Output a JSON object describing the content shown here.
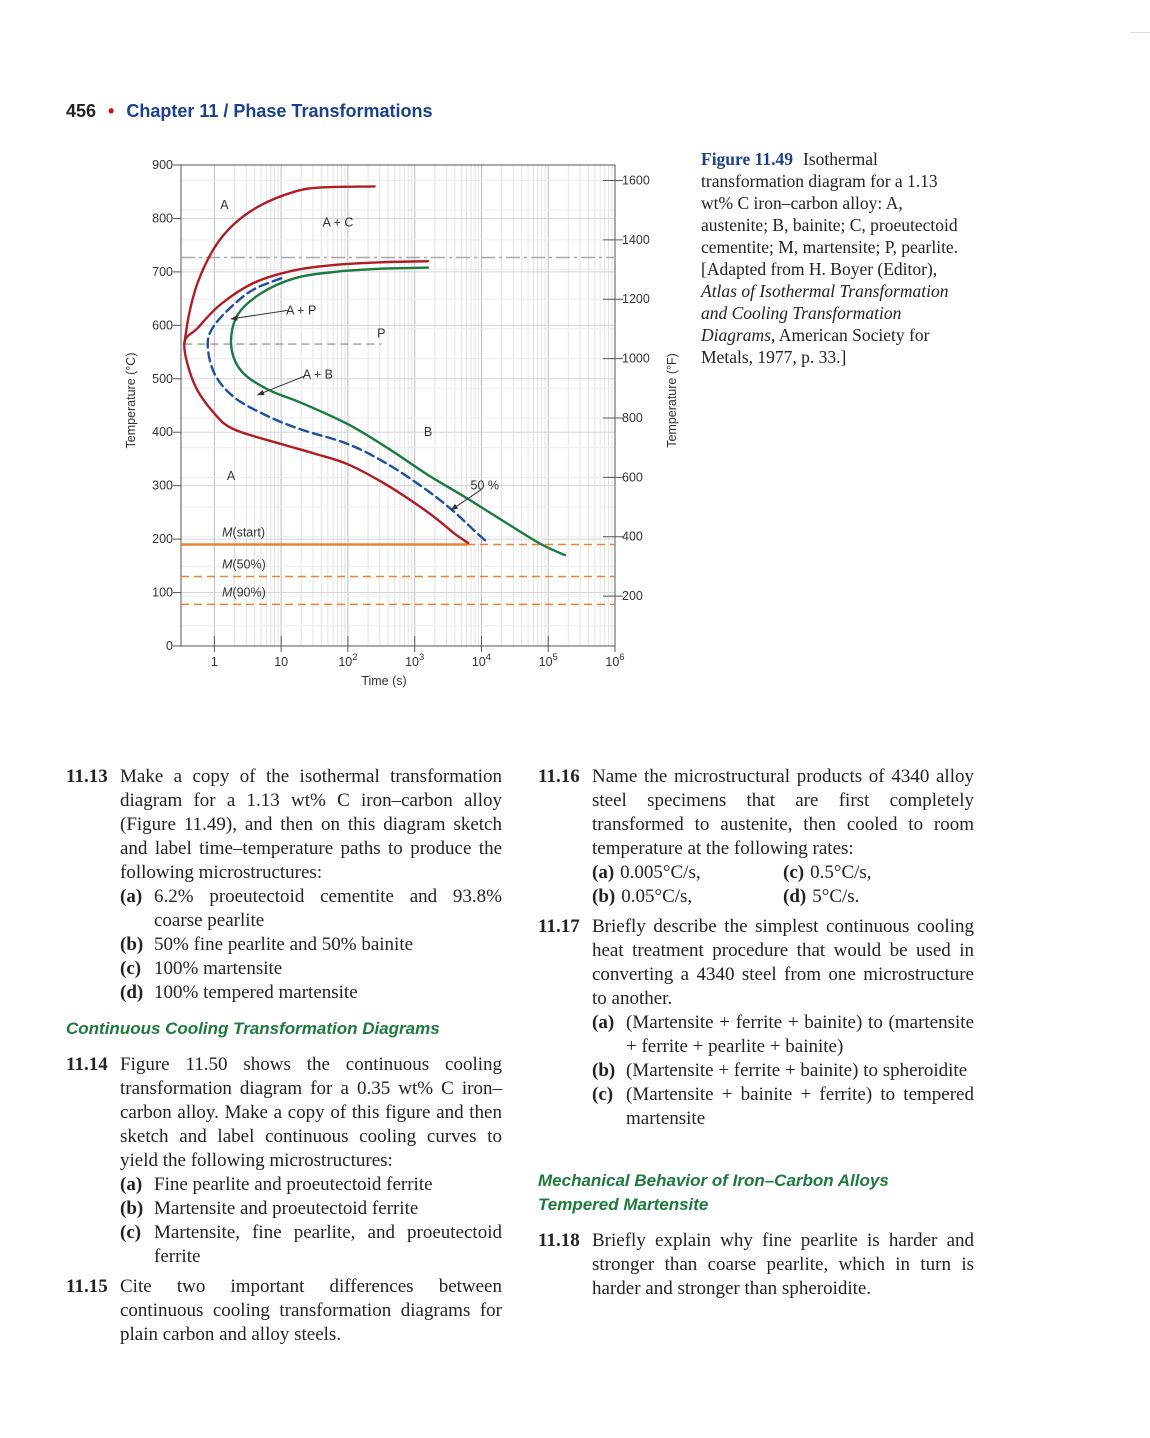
{
  "header": {
    "page_number": "456",
    "bullet": "•",
    "chapter": "Chapter 11 / Phase Transformations"
  },
  "figure": {
    "label": "Figure 11.49",
    "caption_before": "Isothermal transformation diagram for a 1.13 wt% C iron–carbon alloy: A, austenite; B, bainite; C, proeutectoid cementite; M, martensite; P, pearlite. [Adapted from H. Boyer (Editor), ",
    "caption_italic": "Atlas of Isothermal Transformation and Cooling Transformation Diagrams",
    "caption_after": ", American Society for Metals, 1977, p. 33.]"
  },
  "chart_data": {
    "type": "line",
    "xlabel": "Time (s)",
    "ylabel": "Temperature (°C)",
    "ylabel_right": "Temperature (°F)",
    "x_scale": "log",
    "xlim_log10": [
      -0.5,
      6
    ],
    "ylim": [
      0,
      900
    ],
    "x_ticks": [
      {
        "log": 0,
        "base": "1",
        "exp": ""
      },
      {
        "log": 1,
        "base": "10",
        "exp": ""
      },
      {
        "log": 2,
        "base": "10",
        "exp": "2"
      },
      {
        "log": 3,
        "base": "10",
        "exp": "3"
      },
      {
        "log": 4,
        "base": "10",
        "exp": "4"
      },
      {
        "log": 5,
        "base": "10",
        "exp": "5"
      },
      {
        "log": 6,
        "base": "10",
        "exp": "6"
      }
    ],
    "y_ticks": [
      "0",
      "100",
      "200",
      "300",
      "400",
      "500",
      "600",
      "700",
      "800",
      "900"
    ],
    "y_ticks_values": [
      0,
      100,
      200,
      300,
      400,
      500,
      600,
      700,
      800,
      900
    ],
    "y2_ticks": [
      {
        "f": 200,
        "label": "200"
      },
      {
        "f": 400,
        "label": "400"
      },
      {
        "f": 600,
        "label": "600"
      },
      {
        "f": 800,
        "label": "800"
      },
      {
        "f": 1000,
        "label": "1000"
      },
      {
        "f": 1200,
        "label": "1200"
      },
      {
        "f": 1400,
        "label": "1400"
      },
      {
        "f": 1600,
        "label": "1600"
      }
    ],
    "grid": true,
    "colors": {
      "start": "#b01c24",
      "half": "#1f4fa0",
      "finish": "#1a7a40",
      "martensite": "#e8852c",
      "eutectoid": "#a8a8a8"
    },
    "eutectoid_temp": 727,
    "series": [
      {
        "key": "start_upper",
        "color_key": "start",
        "dash": "solid",
        "points": [
          [
            -0.45,
            565
          ],
          [
            -0.38,
            620
          ],
          [
            -0.25,
            680
          ],
          [
            0,
            745
          ],
          [
            0.3,
            790
          ],
          [
            0.7,
            825
          ],
          [
            1.2,
            850
          ],
          [
            1.6,
            858
          ],
          [
            2.4,
            860
          ]
        ]
      },
      {
        "key": "start_nose",
        "color_key": "start",
        "dash": "solid",
        "points": [
          [
            3.2,
            720
          ],
          [
            2.5,
            718
          ],
          [
            1.8,
            713
          ],
          [
            1.2,
            703
          ],
          [
            0.6,
            680
          ],
          [
            0.1,
            640
          ],
          [
            -0.25,
            595
          ],
          [
            -0.45,
            565
          ],
          [
            -0.3,
            490
          ],
          [
            0,
            435
          ],
          [
            0.3,
            405
          ],
          [
            1,
            378
          ],
          [
            1.5,
            360
          ],
          [
            2,
            340
          ],
          [
            2.6,
            300
          ],
          [
            3.2,
            250
          ],
          [
            3.6,
            210
          ],
          [
            3.8,
            193
          ]
        ]
      },
      {
        "key": "half",
        "color_key": "half",
        "dash": "dashed",
        "points": [
          [
            1,
            688
          ],
          [
            0.6,
            668
          ],
          [
            0.3,
            640
          ],
          [
            0,
            600
          ],
          [
            -0.1,
            565
          ],
          [
            0,
            510
          ],
          [
            0.3,
            465
          ],
          [
            0.8,
            430
          ],
          [
            1.3,
            405
          ],
          [
            2,
            378
          ],
          [
            2.6,
            340
          ],
          [
            3.2,
            290
          ],
          [
            3.6,
            250
          ],
          [
            3.9,
            215
          ],
          [
            4.1,
            193
          ]
        ]
      },
      {
        "key": "finish",
        "color_key": "finish",
        "dash": "solid",
        "points": [
          [
            3.2,
            708
          ],
          [
            2.5,
            706
          ],
          [
            1.8,
            700
          ],
          [
            1.2,
            688
          ],
          [
            0.7,
            660
          ],
          [
            0.35,
            620
          ],
          [
            0.25,
            565
          ],
          [
            0.4,
            515
          ],
          [
            0.8,
            480
          ],
          [
            1.3,
            455
          ],
          [
            2,
            415
          ],
          [
            2.6,
            370
          ],
          [
            3.2,
            320
          ],
          [
            3.8,
            275
          ],
          [
            4.4,
            228
          ],
          [
            4.9,
            190
          ],
          [
            5.25,
            170
          ]
        ]
      }
    ],
    "pearlite_boundary": {
      "temp": 565,
      "x_from": -0.45,
      "x_to": 2.5
    },
    "martensite": [
      {
        "label_italic": "M",
        "label_rest": "(start)",
        "temp": 190,
        "solid_to": 3.8
      },
      {
        "label_italic": "M",
        "label_rest": "(50%)",
        "temp": 130
      },
      {
        "label_italic": "M",
        "label_rest": "(90%)",
        "temp": 78
      }
    ],
    "annotations": [
      {
        "text": "A",
        "lx": 0.15,
        "ly": 825
      },
      {
        "text": "A + C",
        "lx": 1.85,
        "ly": 792
      },
      {
        "text": "A + P",
        "lx": 1.3,
        "ly": 628
      },
      {
        "text": "P",
        "lx": 2.5,
        "ly": 585
      },
      {
        "text": "A + B",
        "lx": 1.55,
        "ly": 508
      },
      {
        "text": "B",
        "lx": 3.2,
        "ly": 400
      },
      {
        "text": "A",
        "lx": 0.25,
        "ly": 318
      },
      {
        "text": "50 %",
        "lx": 4.05,
        "ly": 300
      }
    ],
    "arrows": [
      {
        "from": [
          1.1,
          628
        ],
        "to": [
          0.25,
          612
        ]
      },
      {
        "from": [
          1.35,
          505
        ],
        "to": [
          0.65,
          470
        ]
      },
      {
        "from": [
          4.0,
          293
        ],
        "to": [
          3.55,
          255
        ]
      }
    ]
  },
  "left_column": {
    "p13": {
      "num": "11.13",
      "text": "Make a copy of the isothermal transformation diagram for a 1.13 wt% C iron–carbon alloy (Figure 11.49), and then on this diagram sketch and label time–temperature paths to produce the following microstructures:",
      "items": [
        {
          "label": "(a)",
          "text": "6.2% proeutectoid cementite and 93.8% coarse pearlite"
        },
        {
          "label": "(b)",
          "text": "50% fine pearlite and 50% bainite"
        },
        {
          "label": "(c)",
          "text": "100% martensite"
        },
        {
          "label": "(d)",
          "text": "100% tempered martensite"
        }
      ]
    },
    "section": "Continuous Cooling Transformation Diagrams",
    "p14": {
      "num": "11.14",
      "text": "Figure 11.50 shows the continuous cooling transformation diagram for a 0.35 wt% C iron–carbon alloy. Make a copy of this figure and then sketch and label continuous cooling curves to yield the following microstructures:",
      "items": [
        {
          "label": "(a)",
          "text": "Fine pearlite and proeutectoid ferrite"
        },
        {
          "label": "(b)",
          "text": "Martensite and proeutectoid ferrite"
        },
        {
          "label": "(c)",
          "text": "Martensite, fine pearlite, and proeutectoid ferrite"
        }
      ]
    },
    "p15": {
      "num": "11.15",
      "text": "Cite two important differences between continuous cooling transformation diagrams for plain carbon and alloy steels."
    }
  },
  "right_column": {
    "p16": {
      "num": "11.16",
      "text": "Name the microstructural products of 4340 alloy steel specimens that are first completely transformed to austenite, then cooled to room temperature at the following rates:",
      "rates": [
        {
          "label": "(a)",
          "text": "0.005°C/s,"
        },
        {
          "label": "(c)",
          "text": "0.5°C/s,"
        },
        {
          "label": "(b)",
          "text": "0.05°C/s,"
        },
        {
          "label": "(d)",
          "text": "5°C/s."
        }
      ]
    },
    "p17": {
      "num": "11.17",
      "text": "Briefly describe the simplest continuous cooling heat treatment procedure that would be used in converting a 4340 steel from one microstructure to another.",
      "items": [
        {
          "label": "(a)",
          "text": "(Martensite + ferrite + bainite) to (martensite + ferrite + pearlite + bainite)"
        },
        {
          "label": "(b)",
          "text": "(Martensite + ferrite + bainite) to spheroidite"
        },
        {
          "label": "(c)",
          "text": "(Martensite + bainite + ferrite) to tempered martensite"
        }
      ]
    },
    "section1": "Mechanical Behavior of Iron–Carbon Alloys",
    "section2": "Tempered Martensite",
    "p18": {
      "num": "11.18",
      "text": "Briefly explain why fine pearlite is harder and stronger than coarse pearlite, which in turn is harder and stronger than spheroidite."
    }
  }
}
